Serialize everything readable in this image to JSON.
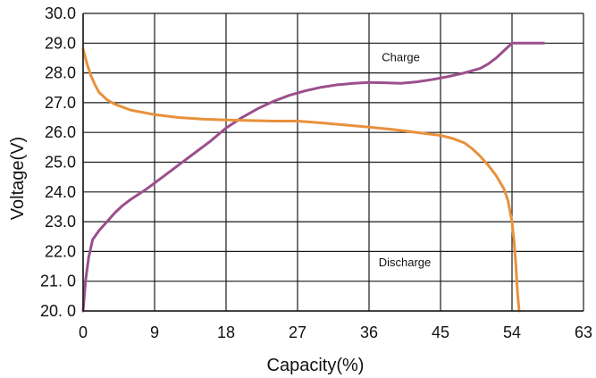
{
  "chart_data": {
    "type": "line",
    "title": "",
    "xlabel": "Capacity(%)",
    "ylabel": "Voltage(V)",
    "xlim": [
      0,
      63
    ],
    "ylim": [
      20.0,
      30.0
    ],
    "grid": true,
    "x_ticks": [
      0,
      9,
      18,
      27,
      36,
      45,
      54,
      63
    ],
    "x_tick_labels": [
      "0",
      "9",
      "18",
      "27",
      "36",
      "45",
      "54",
      "63"
    ],
    "y_ticks": [
      30,
      29,
      28,
      27,
      26,
      25,
      24,
      23,
      22,
      21,
      20
    ],
    "y_tick_labels": [
      "30.0",
      "29.0",
      "28.0",
      "27.0",
      "26.0",
      "25.0",
      "24.0",
      "23.0",
      "22.0",
      "21. 0",
      "20. 0"
    ],
    "annotations": [
      {
        "text": "Charge",
        "x": 40,
        "y": 28.4
      },
      {
        "text": "Discharge",
        "x": 40.5,
        "y": 21.5
      }
    ],
    "series": [
      {
        "label": "Charge",
        "color": "#9b4f8d",
        "x": [
          0,
          0.3,
          0.7,
          1.2,
          2,
          3,
          4,
          5,
          6,
          8,
          10,
          12,
          14,
          16,
          18,
          20,
          22,
          24,
          26,
          28,
          30,
          32,
          34,
          36,
          38,
          40,
          42,
          44,
          46,
          48,
          50,
          51,
          52,
          53,
          54,
          55,
          56,
          57,
          58
        ],
        "y": [
          20.0,
          21.0,
          21.8,
          22.4,
          22.7,
          23.0,
          23.3,
          23.55,
          23.75,
          24.1,
          24.5,
          24.9,
          25.3,
          25.7,
          26.15,
          26.5,
          26.8,
          27.05,
          27.25,
          27.4,
          27.52,
          27.6,
          27.65,
          27.68,
          27.67,
          27.65,
          27.7,
          27.78,
          27.88,
          28.0,
          28.15,
          28.3,
          28.5,
          28.75,
          29.0,
          29.0,
          29.0,
          29.0,
          29.0
        ]
      },
      {
        "label": "Discharge",
        "color": "#e8913c",
        "x": [
          0,
          0.5,
          1,
          1.5,
          2,
          3,
          4,
          6,
          9,
          12,
          15,
          18,
          21,
          24,
          27,
          30,
          33,
          36,
          39,
          42,
          45,
          46.5,
          48,
          49,
          50,
          51,
          52,
          53,
          53.5,
          54,
          54.3,
          54.5,
          54.6,
          54.7,
          54.8,
          54.9
        ],
        "y": [
          28.8,
          28.3,
          27.9,
          27.6,
          27.35,
          27.1,
          26.95,
          26.75,
          26.6,
          26.5,
          26.45,
          26.42,
          26.4,
          26.38,
          26.38,
          26.32,
          26.25,
          26.18,
          26.1,
          26.0,
          25.9,
          25.8,
          25.65,
          25.45,
          25.2,
          24.9,
          24.55,
          24.1,
          23.7,
          23.0,
          22.2,
          21.5,
          21.0,
          20.6,
          20.3,
          20.0
        ]
      }
    ]
  }
}
